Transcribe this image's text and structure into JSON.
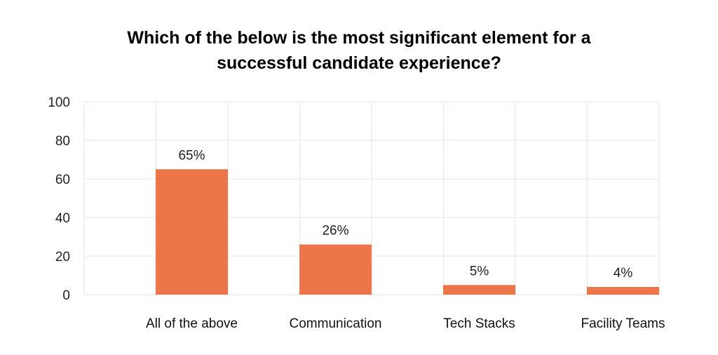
{
  "chart_data": {
    "type": "bar",
    "title_line1": "Which of the below is the most significant element for a",
    "title_line2": "successful candidate experience?",
    "categories": [
      "All of the above",
      "Communication",
      "Tech Stacks",
      "Facility Teams"
    ],
    "values": [
      65,
      26,
      5,
      4
    ],
    "data_labels": [
      "65%",
      "26%",
      "5%",
      "4%"
    ],
    "ylim": [
      0,
      100
    ],
    "yticks": [
      0,
      20,
      40,
      60,
      80,
      100
    ],
    "grid": true,
    "bar_color": "#ec754a",
    "grid_color": "#e6e6e6"
  }
}
